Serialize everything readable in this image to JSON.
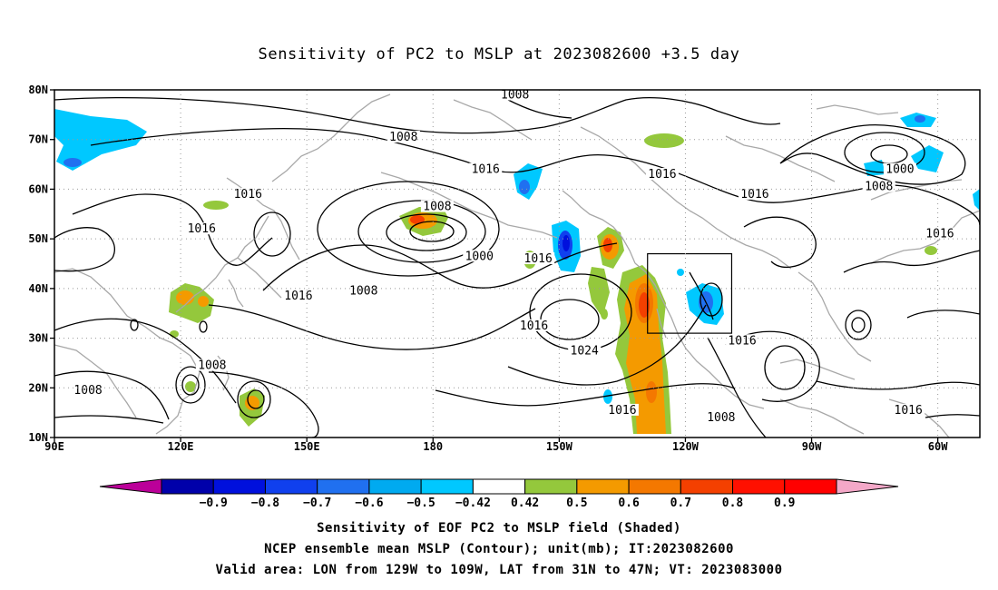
{
  "title": "Sensitivity of PC2 to MSLP at 2023082600 +3.5 day",
  "axes": {
    "lat_labels": [
      "80N",
      "70N",
      "60N",
      "50N",
      "40N",
      "30N",
      "20N",
      "10N"
    ],
    "lat_values": [
      80,
      70,
      60,
      50,
      40,
      30,
      20,
      10
    ],
    "lon_labels": [
      "90E",
      "120E",
      "150E",
      "180",
      "150W",
      "120W",
      "90W",
      "60W"
    ],
    "lon_values": [
      90,
      120,
      150,
      180,
      210,
      240,
      270,
      300
    ],
    "lon_range": [
      90,
      310
    ],
    "lat_range": [
      10,
      80
    ],
    "grid": "dotted"
  },
  "valid_box": {
    "lon_min": 231,
    "lon_max": 251,
    "lat_min": 31,
    "lat_max": 47
  },
  "contour_labels": [
    {
      "text": "1008",
      "lon": 199.5,
      "lat": 79
    },
    {
      "text": "1008",
      "lon": 173,
      "lat": 70.5
    },
    {
      "text": "1016",
      "lon": 192.5,
      "lat": 64
    },
    {
      "text": "1016",
      "lon": 234.5,
      "lat": 63
    },
    {
      "text": "1000",
      "lon": 291,
      "lat": 64
    },
    {
      "text": "1008",
      "lon": 286,
      "lat": 60.5
    },
    {
      "text": "1016",
      "lon": 136,
      "lat": 59
    },
    {
      "text": "1016",
      "lon": 256.5,
      "lat": 59
    },
    {
      "text": "1008",
      "lon": 181,
      "lat": 56.5
    },
    {
      "text": "1016",
      "lon": 125,
      "lat": 52
    },
    {
      "text": "1016",
      "lon": 300.5,
      "lat": 51
    },
    {
      "text": "1000",
      "lon": 191,
      "lat": 46.5
    },
    {
      "text": "1016",
      "lon": 205,
      "lat": 46
    },
    {
      "text": "1008",
      "lon": 163.5,
      "lat": 39.5
    },
    {
      "text": "1016",
      "lon": 148,
      "lat": 38.5
    },
    {
      "text": "1016",
      "lon": 204,
      "lat": 32.5
    },
    {
      "text": "1016",
      "lon": 253.5,
      "lat": 29.5
    },
    {
      "text": "1024",
      "lon": 216,
      "lat": 27.5
    },
    {
      "text": "1008",
      "lon": 127.5,
      "lat": 24.5
    },
    {
      "text": "1008",
      "lon": 98,
      "lat": 19.5
    },
    {
      "text": "1016",
      "lon": 225,
      "lat": 15.5
    },
    {
      "text": "1016",
      "lon": 293,
      "lat": 15.5
    },
    {
      "text": "1008",
      "lon": 248.5,
      "lat": 14
    }
  ],
  "colorbar": {
    "colors": [
      "#bb0099",
      "#0000aa",
      "#0010dd",
      "#1040ee",
      "#2070f0",
      "#00aaf0",
      "#00c8ff",
      "#ffffff",
      "#94c83c",
      "#f49a00",
      "#f47800",
      "#f44000",
      "#ff1000",
      "#ff0000",
      "#f4a8c8"
    ],
    "labels": [
      "−0.9",
      "−0.8",
      "−0.7",
      "−0.6",
      "−0.5",
      "−0.42",
      "0.42",
      "0.5",
      "0.6",
      "0.7",
      "0.8",
      "0.9"
    ]
  },
  "captions": [
    "Sensitivity of EOF PC2 to MSLP field (Shaded)",
    "NCEP ensemble mean MSLP (Contour); unit(mb); IT:2023082600",
    "Valid area: LON from 129W to 109W, LAT from 31N to 47N; VT: 2023083000"
  ]
}
